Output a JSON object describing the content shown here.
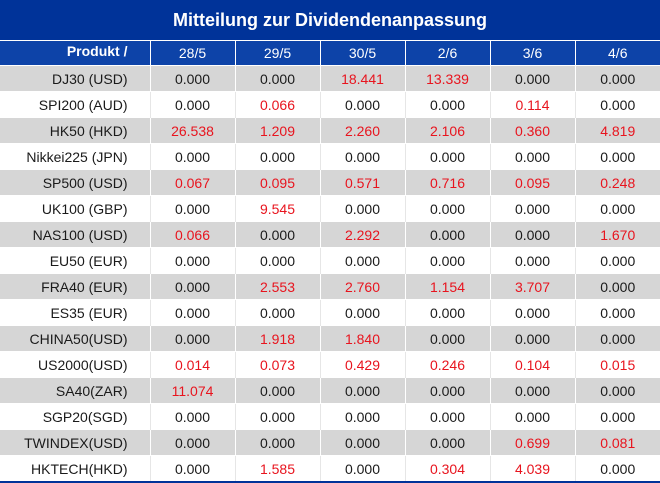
{
  "title": "Mitteilung zur Dividendenanpassung",
  "header": {
    "product": "Produkt /",
    "dates": [
      "28/5",
      "29/5",
      "30/5",
      "2/6",
      "3/6",
      "4/6"
    ]
  },
  "colors": {
    "header_bg": "#003399",
    "row_shaded": "#d6d6d6",
    "nonzero_value": "#e8141e",
    "zero_value": "#1a1a1a"
  },
  "rows": [
    {
      "product": "DJ30 (USD)",
      "values": [
        "0.000",
        "0.000",
        "18.441",
        "13.339",
        "0.000",
        "0.000"
      ]
    },
    {
      "product": "SPI200 (AUD)",
      "values": [
        "0.000",
        "0.066",
        "0.000",
        "0.000",
        "0.114",
        "0.000"
      ]
    },
    {
      "product": "HK50 (HKD)",
      "values": [
        "26.538",
        "1.209",
        "2.260",
        "2.106",
        "0.360",
        "4.819"
      ]
    },
    {
      "product": "Nikkei225 (JPN)",
      "values": [
        "0.000",
        "0.000",
        "0.000",
        "0.000",
        "0.000",
        "0.000"
      ]
    },
    {
      "product": "SP500 (USD)",
      "values": [
        "0.067",
        "0.095",
        "0.571",
        "0.716",
        "0.095",
        "0.248"
      ]
    },
    {
      "product": "UK100 (GBP)",
      "values": [
        "0.000",
        "9.545",
        "0.000",
        "0.000",
        "0.000",
        "0.000"
      ]
    },
    {
      "product": "NAS100 (USD)",
      "values": [
        "0.066",
        "0.000",
        "2.292",
        "0.000",
        "0.000",
        "1.670"
      ]
    },
    {
      "product": "EU50 (EUR)",
      "values": [
        "0.000",
        "0.000",
        "0.000",
        "0.000",
        "0.000",
        "0.000"
      ]
    },
    {
      "product": "FRA40 (EUR)",
      "values": [
        "0.000",
        "2.553",
        "2.760",
        "1.154",
        "3.707",
        "0.000"
      ]
    },
    {
      "product": "ES35 (EUR)",
      "values": [
        "0.000",
        "0.000",
        "0.000",
        "0.000",
        "0.000",
        "0.000"
      ]
    },
    {
      "product": "CHINA50(USD)",
      "values": [
        "0.000",
        "1.918",
        "1.840",
        "0.000",
        "0.000",
        "0.000"
      ]
    },
    {
      "product": "US2000(USD)",
      "values": [
        "0.014",
        "0.073",
        "0.429",
        "0.246",
        "0.104",
        "0.015"
      ]
    },
    {
      "product": "SA40(ZAR)",
      "values": [
        "11.074",
        "0.000",
        "0.000",
        "0.000",
        "0.000",
        "0.000"
      ]
    },
    {
      "product": "SGP20(SGD)",
      "values": [
        "0.000",
        "0.000",
        "0.000",
        "0.000",
        "0.000",
        "0.000"
      ]
    },
    {
      "product": "TWINDEX(USD)",
      "values": [
        "0.000",
        "0.000",
        "0.000",
        "0.000",
        "0.699",
        "0.081"
      ]
    },
    {
      "product": "HKTECH(HKD)",
      "values": [
        "0.000",
        "1.585",
        "0.000",
        "0.304",
        "4.039",
        "0.000"
      ]
    }
  ]
}
